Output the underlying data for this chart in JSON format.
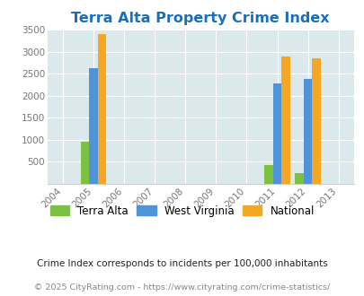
{
  "title": "Terra Alta Property Crime Index",
  "title_color": "#1a6fba",
  "years": [
    2004,
    2005,
    2006,
    2007,
    2008,
    2009,
    2010,
    2011,
    2012,
    2013
  ],
  "bar_data": {
    "2005": {
      "terra_alta": 950,
      "west_virginia": 2630,
      "national": 3400
    },
    "2011": {
      "terra_alta": 420,
      "west_virginia": 2280,
      "national": 2890
    },
    "2012": {
      "terra_alta": 230,
      "west_virginia": 2370,
      "national": 2855
    }
  },
  "colors": {
    "terra_alta": "#7dc142",
    "west_virginia": "#4f93d8",
    "national": "#f5a623"
  },
  "ylim": [
    0,
    3500
  ],
  "yticks": [
    0,
    500,
    1000,
    1500,
    2000,
    2500,
    3000,
    3500
  ],
  "plot_bg_color": "#dce9ec",
  "legend_labels": [
    "Terra Alta",
    "West Virginia",
    "National"
  ],
  "footnote1": "Crime Index corresponds to incidents per 100,000 inhabitants",
  "footnote2": "© 2025 CityRating.com - https://www.cityrating.com/crime-statistics/",
  "bar_width": 0.28
}
